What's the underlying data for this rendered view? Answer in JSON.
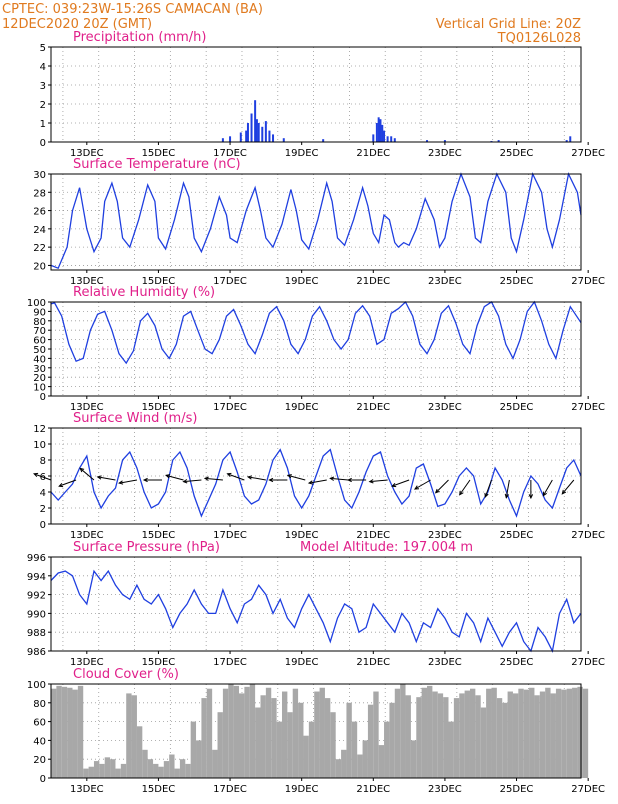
{
  "header": {
    "line1_left": "CPTEC:   039:23W-15:26S   CAMACAN (BA)",
    "line2_left": "12DEC2020  20Z (GMT)",
    "line1_right": "Vertical Grid Line: 20Z",
    "line2_right": "TQ0126L028"
  },
  "colors": {
    "header": "#e07a1f",
    "title": "#e0208a",
    "series": "#1f3fe0",
    "cloud": "#a8a8a8",
    "wind_arrow": "#000000"
  },
  "chart_data": [
    {
      "id": "precip",
      "type": "bar",
      "title": "Precipitation (mm/h)",
      "ylim": [
        0,
        5
      ],
      "yticks": [
        "0",
        "1",
        "2",
        "3",
        "4",
        "5"
      ],
      "xticks": [
        "13DEC",
        "15DEC",
        "17DEC",
        "19DEC",
        "21DEC",
        "23DEC",
        "25DEC",
        "27DEC"
      ],
      "x": [
        4.8,
        5.0,
        5.3,
        5.45,
        5.5,
        5.6,
        5.7,
        5.75,
        5.8,
        5.9,
        6.0,
        6.1,
        6.2,
        6.5,
        7.6,
        9.0,
        9.1,
        9.15,
        9.2,
        9.25,
        9.3,
        9.4,
        9.5,
        9.6,
        10.5,
        11.0,
        12.3,
        12.5,
        14.4,
        14.5
      ],
      "values": [
        0.2,
        0.3,
        0.5,
        0.6,
        1.0,
        1.5,
        2.2,
        1.2,
        1.0,
        0.8,
        1.1,
        0.6,
        0.4,
        0.2,
        0.15,
        0.4,
        1.0,
        1.3,
        1.2,
        0.9,
        0.6,
        0.3,
        0.3,
        0.2,
        0.1,
        0.1,
        0.05,
        0.1,
        0.1,
        0.3
      ],
      "grid": true
    },
    {
      "id": "temp",
      "type": "line",
      "title": "Surface Temperature (nC)",
      "ylim": [
        19.5,
        30
      ],
      "yticks": [
        "20",
        "22",
        "24",
        "26",
        "28",
        "30"
      ],
      "xticks": [
        "13DEC",
        "15DEC",
        "17DEC",
        "19DEC",
        "21DEC",
        "23DEC",
        "25DEC",
        "27DEC"
      ],
      "x": [
        0,
        0.2,
        0.45,
        0.6,
        0.8,
        1.0,
        1.2,
        1.4,
        1.5,
        1.7,
        1.85,
        2.0,
        2.2,
        2.45,
        2.7,
        2.9,
        3.0,
        3.2,
        3.45,
        3.7,
        3.85,
        4.0,
        4.2,
        4.45,
        4.7,
        4.9,
        5.0,
        5.2,
        5.45,
        5.7,
        5.85,
        6.0,
        6.2,
        6.45,
        6.7,
        6.85,
        7.0,
        7.2,
        7.45,
        7.7,
        7.85,
        8.0,
        8.2,
        8.45,
        8.7,
        8.85,
        9.0,
        9.15,
        9.3,
        9.45,
        9.6,
        9.7,
        9.85,
        10.0,
        10.2,
        10.45,
        10.7,
        10.85,
        11.0,
        11.2,
        11.45,
        11.7,
        11.85,
        12.0,
        12.2,
        12.45,
        12.7,
        12.85,
        13.0,
        13.2,
        13.45,
        13.7,
        13.85,
        14.0,
        14.2,
        14.45,
        14.7,
        14.8
      ],
      "values": [
        20,
        19.7,
        22,
        26,
        28.5,
        24,
        21.5,
        23,
        27,
        29,
        27,
        23,
        22,
        25,
        28.8,
        27,
        23,
        21.8,
        25,
        29,
        27.5,
        23,
        21.5,
        24,
        27.5,
        25.5,
        23,
        22.5,
        26,
        28.5,
        26,
        23,
        22,
        24.5,
        28.3,
        26,
        22.8,
        21.8,
        25,
        29,
        27,
        23,
        22.2,
        25,
        28.5,
        26.5,
        23.5,
        22.5,
        25.5,
        25,
        22.5,
        22,
        22.5,
        22.2,
        24,
        27.3,
        25,
        22,
        23,
        27,
        30,
        27.5,
        23,
        22.5,
        27,
        30,
        28,
        23,
        21.5,
        25,
        30,
        28,
        24,
        22,
        25,
        30,
        28,
        25.5
      ],
      "grid": true
    },
    {
      "id": "rh",
      "type": "line",
      "title": "Relative Humidity (%)",
      "ylim": [
        0,
        100
      ],
      "yticks": [
        "0",
        "10",
        "20",
        "30",
        "40",
        "50",
        "60",
        "70",
        "80",
        "90",
        "100"
      ],
      "xticks": [
        "13DEC",
        "15DEC",
        "17DEC",
        "19DEC",
        "21DEC",
        "23DEC",
        "25DEC",
        "27DEC"
      ],
      "x": [
        0,
        0.1,
        0.3,
        0.5,
        0.7,
        0.9,
        1.1,
        1.3,
        1.5,
        1.7,
        1.9,
        2.1,
        2.3,
        2.5,
        2.7,
        2.9,
        3.1,
        3.3,
        3.5,
        3.7,
        3.9,
        4.1,
        4.3,
        4.5,
        4.7,
        4.9,
        5.1,
        5.3,
        5.5,
        5.7,
        5.9,
        6.1,
        6.3,
        6.5,
        6.7,
        6.9,
        7.1,
        7.3,
        7.5,
        7.7,
        7.9,
        8.1,
        8.3,
        8.5,
        8.7,
        8.9,
        9.1,
        9.3,
        9.5,
        9.7,
        9.9,
        10.1,
        10.3,
        10.5,
        10.7,
        10.9,
        11.1,
        11.3,
        11.5,
        11.7,
        11.9,
        12.1,
        12.3,
        12.5,
        12.7,
        12.9,
        13.1,
        13.3,
        13.5,
        13.7,
        13.9,
        14.1,
        14.3,
        14.5,
        14.8
      ],
      "values": [
        98,
        99,
        85,
        55,
        37,
        40,
        70,
        87,
        90,
        70,
        45,
        35,
        48,
        80,
        88,
        75,
        50,
        40,
        55,
        85,
        90,
        70,
        50,
        45,
        60,
        85,
        92,
        75,
        55,
        45,
        65,
        88,
        95,
        80,
        55,
        45,
        60,
        85,
        95,
        80,
        60,
        50,
        60,
        88,
        96,
        85,
        55,
        60,
        88,
        93,
        100,
        85,
        55,
        45,
        60,
        88,
        96,
        78,
        55,
        45,
        75,
        95,
        100,
        85,
        55,
        40,
        60,
        90,
        100,
        80,
        55,
        40,
        70,
        95,
        78
      ],
      "grid": true
    },
    {
      "id": "wind",
      "type": "line",
      "title": "Surface Wind (m/s)",
      "ylim": [
        0,
        12
      ],
      "yticks": [
        "0",
        "2",
        "4",
        "6",
        "8",
        "10",
        "12"
      ],
      "xticks": [
        "13DEC",
        "15DEC",
        "17DEC",
        "19DEC",
        "21DEC",
        "23DEC",
        "25DEC",
        "27DEC"
      ],
      "x": [
        0,
        0.2,
        0.4,
        0.6,
        0.8,
        1.0,
        1.2,
        1.4,
        1.6,
        1.8,
        2.0,
        2.2,
        2.4,
        2.6,
        2.8,
        3.0,
        3.2,
        3.4,
        3.6,
        3.8,
        4.0,
        4.2,
        4.4,
        4.6,
        4.8,
        5.0,
        5.2,
        5.4,
        5.6,
        5.8,
        6.0,
        6.2,
        6.4,
        6.6,
        6.8,
        7.0,
        7.2,
        7.4,
        7.6,
        7.8,
        8.0,
        8.2,
        8.4,
        8.6,
        8.8,
        9.0,
        9.2,
        9.4,
        9.6,
        9.8,
        10.0,
        10.2,
        10.4,
        10.6,
        10.8,
        11.0,
        11.2,
        11.4,
        11.6,
        11.8,
        12.0,
        12.2,
        12.4,
        12.6,
        12.8,
        13.0,
        13.2,
        13.4,
        13.6,
        13.8,
        14.0,
        14.2,
        14.4,
        14.6,
        14.8
      ],
      "values": [
        4,
        3,
        4,
        5,
        7,
        8.5,
        4,
        2,
        3.5,
        4.5,
        8,
        9,
        7,
        4,
        2,
        2.5,
        4,
        8,
        9,
        7,
        3.5,
        1,
        3,
        5,
        8,
        9,
        6.5,
        3.5,
        2.5,
        3,
        5,
        8,
        9.3,
        7,
        3.5,
        2,
        3.5,
        6,
        8.5,
        9.3,
        6,
        3,
        2,
        4,
        6.5,
        8.5,
        9,
        6,
        4,
        2.5,
        3.5,
        7,
        7.5,
        5,
        2.2,
        2.5,
        4,
        6,
        7,
        6,
        2.5,
        4,
        7,
        5.5,
        3,
        1,
        4,
        6,
        5,
        3,
        2,
        4.5,
        7,
        8,
        6
      ],
      "wind_arrows_x": [
        0,
        0.7,
        1.2,
        1.8,
        2.4,
        3.1,
        3.7,
        4.2,
        4.8,
        5.4,
        6.0,
        6.6,
        7.1,
        7.7,
        8.3,
        8.8,
        9.4,
        10.0,
        10.6,
        11.1,
        11.7,
        12.3,
        12.8,
        13.4,
        14.0,
        14.6
      ],
      "wind_arrows_dir_deg": [
        200,
        160,
        220,
        190,
        170,
        180,
        195,
        175,
        185,
        200,
        190,
        180,
        195,
        170,
        185,
        180,
        175,
        160,
        150,
        135,
        125,
        110,
        100,
        90,
        120,
        130
      ],
      "grid": true
    },
    {
      "id": "pressure",
      "type": "line",
      "title": "Surface Pressure (hPa)",
      "annotation": "Model Altitude: 197.004 m",
      "ylim": [
        986,
        996
      ],
      "yticks": [
        "986",
        "988",
        "990",
        "992",
        "994",
        "996"
      ],
      "xticks": [
        "13DEC",
        "15DEC",
        "17DEC",
        "19DEC",
        "21DEC",
        "23DEC",
        "25DEC",
        "27DEC"
      ],
      "x": [
        0,
        0.2,
        0.4,
        0.6,
        0.8,
        1.0,
        1.2,
        1.4,
        1.6,
        1.8,
        2.0,
        2.2,
        2.4,
        2.6,
        2.8,
        3.0,
        3.2,
        3.4,
        3.6,
        3.8,
        4.0,
        4.2,
        4.4,
        4.6,
        4.8,
        5.0,
        5.2,
        5.4,
        5.6,
        5.8,
        6.0,
        6.2,
        6.4,
        6.6,
        6.8,
        7.0,
        7.2,
        7.4,
        7.6,
        7.8,
        8.0,
        8.2,
        8.4,
        8.6,
        8.8,
        9.0,
        9.2,
        9.4,
        9.6,
        9.8,
        10.0,
        10.2,
        10.4,
        10.6,
        10.8,
        11.0,
        11.2,
        11.4,
        11.6,
        11.8,
        12.0,
        12.2,
        12.4,
        12.6,
        12.8,
        13.0,
        13.2,
        13.4,
        13.6,
        13.8,
        14.0,
        14.2,
        14.4,
        14.6,
        14.8
      ],
      "values": [
        993.5,
        994.3,
        994.5,
        994,
        992,
        991,
        994.5,
        993.5,
        994.5,
        993,
        992,
        991.5,
        993,
        991.5,
        991,
        992,
        990.5,
        988.5,
        990,
        991,
        992.5,
        991,
        990,
        990,
        992.5,
        990.5,
        989,
        991,
        991.5,
        993,
        992,
        990,
        991.5,
        989.5,
        988.5,
        990.5,
        992,
        990.5,
        989,
        987,
        989.5,
        991,
        990.5,
        988,
        988.5,
        991,
        990,
        989,
        988,
        990,
        989,
        987,
        989,
        988.5,
        990.5,
        989.5,
        988,
        987.5,
        990,
        989,
        987,
        989.5,
        988,
        986.5,
        988,
        989,
        987,
        986,
        988.5,
        987.5,
        986,
        990,
        991.5,
        989,
        990
      ],
      "grid": true
    },
    {
      "id": "cloud",
      "type": "area",
      "title": "Cloud Cover (%)",
      "ylim": [
        0,
        100
      ],
      "yticks": [
        "0",
        "20",
        "40",
        "60",
        "80",
        "100"
      ],
      "xticks": [
        "13DEC",
        "15DEC",
        "17DEC",
        "19DEC",
        "21DEC",
        "23DEC",
        "25DEC",
        "27DEC"
      ],
      "x": [
        0,
        0.15,
        0.3,
        0.45,
        0.6,
        0.75,
        0.9,
        1.05,
        1.2,
        1.35,
        1.5,
        1.65,
        1.8,
        1.95,
        2.1,
        2.25,
        2.4,
        2.55,
        2.7,
        2.85,
        3.0,
        3.15,
        3.3,
        3.45,
        3.6,
        3.75,
        3.9,
        4.05,
        4.2,
        4.35,
        4.5,
        4.65,
        4.8,
        4.95,
        5.1,
        5.25,
        5.4,
        5.55,
        5.7,
        5.85,
        6.0,
        6.15,
        6.3,
        6.45,
        6.6,
        6.75,
        6.9,
        7.05,
        7.2,
        7.35,
        7.5,
        7.65,
        7.8,
        7.95,
        8.1,
        8.25,
        8.4,
        8.55,
        8.7,
        8.85,
        9.0,
        9.15,
        9.3,
        9.45,
        9.6,
        9.75,
        9.9,
        10.05,
        10.2,
        10.35,
        10.5,
        10.65,
        10.8,
        10.95,
        11.1,
        11.25,
        11.4,
        11.55,
        11.7,
        11.85,
        12.0,
        12.15,
        12.3,
        12.45,
        12.6,
        12.75,
        12.9,
        13.05,
        13.2,
        13.35,
        13.5,
        13.65,
        13.8,
        13.95,
        14.1,
        14.25,
        14.4,
        14.55,
        14.7,
        14.85
      ],
      "values": [
        95,
        98,
        97,
        96,
        94,
        98,
        10,
        12,
        18,
        15,
        22,
        20,
        10,
        15,
        90,
        88,
        55,
        30,
        20,
        15,
        12,
        18,
        25,
        10,
        20,
        15,
        60,
        40,
        85,
        95,
        30,
        70,
        95,
        100,
        98,
        90,
        97,
        100,
        75,
        88,
        96,
        85,
        60,
        92,
        70,
        95,
        80,
        45,
        60,
        92,
        96,
        85,
        70,
        20,
        30,
        80,
        60,
        25,
        40,
        78,
        92,
        35,
        60,
        80,
        95,
        100,
        88,
        40,
        86,
        96,
        98,
        92,
        90,
        86,
        60,
        85,
        90,
        93,
        95,
        88,
        75,
        95,
        96,
        85,
        80,
        92,
        90,
        95,
        94,
        96,
        88,
        92,
        96,
        90,
        95,
        94,
        95,
        96,
        97,
        95
      ],
      "grid": true
    }
  ]
}
